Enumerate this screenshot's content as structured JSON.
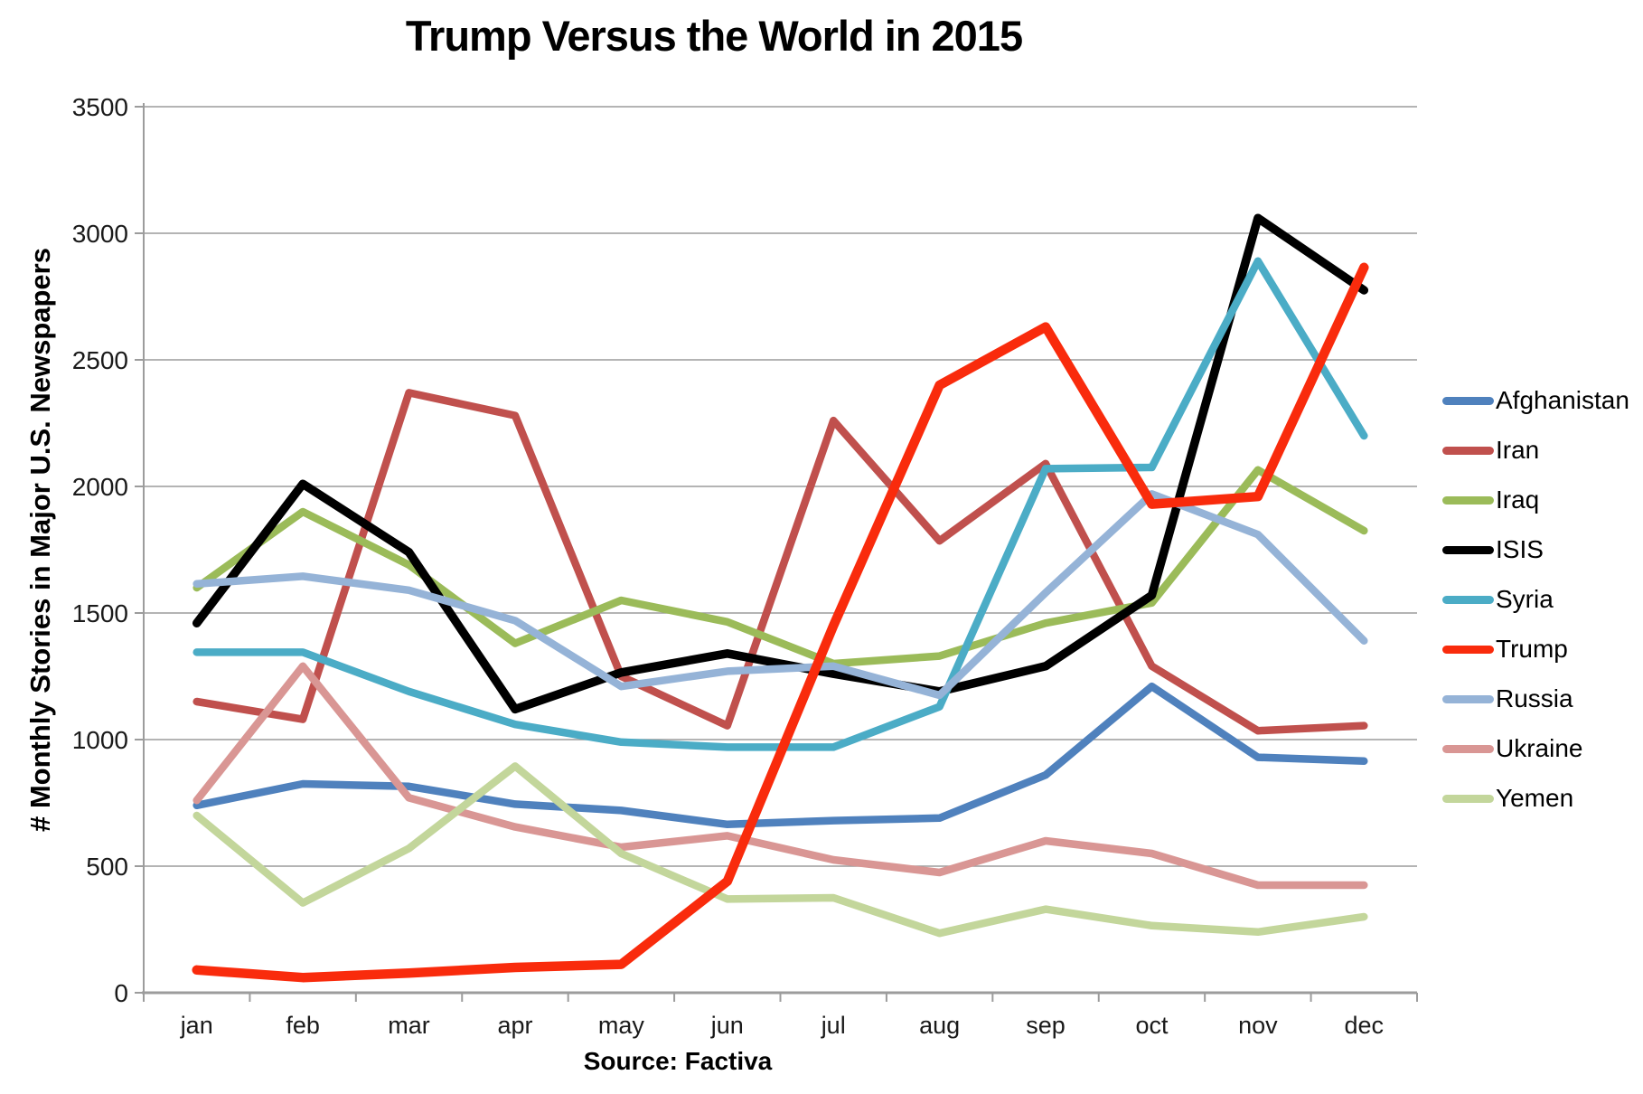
{
  "chart_data": {
    "type": "line",
    "title": "Trump Versus the World in 2015",
    "ylabel": "# Monthly Stories in Major U.S. Newspapers",
    "xlabel": "",
    "source": "Source: Factiva",
    "categories": [
      "jan",
      "feb",
      "mar",
      "apr",
      "may",
      "jun",
      "jul",
      "aug",
      "sep",
      "oct",
      "nov",
      "dec"
    ],
    "ylim": [
      0,
      3500
    ],
    "ytick_step": 500,
    "grid": true,
    "legend_position": "right",
    "axis_color": "#9C9C9C",
    "text_color": "#1a1a1a",
    "series": [
      {
        "name": "Afghanistan",
        "color": "#4F81BD",
        "width": 8.5,
        "values": [
          740,
          825,
          815,
          745,
          720,
          665,
          680,
          690,
          860,
          1210,
          930,
          915
        ]
      },
      {
        "name": "Iran",
        "color": "#C0504D",
        "width": 8.5,
        "values": [
          1150,
          1080,
          2370,
          2280,
          1250,
          1055,
          2260,
          1785,
          2090,
          1290,
          1035,
          1055
        ]
      },
      {
        "name": "Iraq",
        "color": "#9BBB59",
        "width": 8.5,
        "values": [
          1600,
          1900,
          1690,
          1380,
          1550,
          1465,
          1300,
          1330,
          1460,
          1540,
          2065,
          1825
        ]
      },
      {
        "name": "ISIS",
        "color": "#000000",
        "width": 9.5,
        "values": [
          1460,
          2010,
          1740,
          1120,
          1265,
          1340,
          1260,
          1190,
          1290,
          1570,
          3060,
          2775
        ]
      },
      {
        "name": "Syria",
        "color": "#4BACC6",
        "width": 8.5,
        "values": [
          1345,
          1345,
          1190,
          1060,
          990,
          970,
          970,
          1130,
          2070,
          2075,
          2890,
          2200
        ]
      },
      {
        "name": "Trump",
        "color": "#F92B0C",
        "width": 10.5,
        "values": [
          90,
          60,
          78,
          100,
          112,
          440,
          1450,
          2400,
          2630,
          1930,
          1960,
          2865
        ]
      },
      {
        "name": "Russia",
        "color": "#95B3D7",
        "width": 8.5,
        "values": [
          1615,
          1645,
          1590,
          1470,
          1210,
          1270,
          1290,
          1175,
          1580,
          1970,
          1810,
          1390
        ]
      },
      {
        "name": "Ukraine",
        "color": "#D99694",
        "width": 8.5,
        "values": [
          760,
          1290,
          770,
          655,
          575,
          620,
          525,
          475,
          600,
          550,
          425,
          425
        ]
      },
      {
        "name": "Yemen",
        "color": "#C3D69B",
        "width": 8.5,
        "values": [
          700,
          355,
          570,
          895,
          550,
          370,
          375,
          235,
          330,
          265,
          240,
          300
        ]
      }
    ],
    "draw_order": [
      0,
      1,
      2,
      3,
      4,
      6,
      7,
      8,
      5
    ]
  }
}
